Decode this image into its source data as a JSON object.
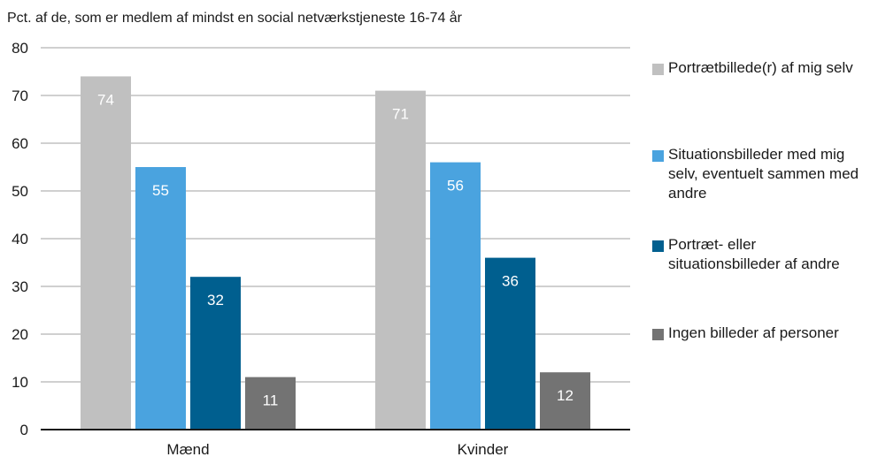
{
  "chart_data": {
    "type": "bar",
    "ylabel": "Pct. af de, som er medlem af mindst en social netværkstjeneste  16-74 år",
    "categories": [
      "Mænd",
      "Kvinder"
    ],
    "ylim": [
      0,
      80
    ],
    "yticks": [
      0,
      10,
      20,
      30,
      40,
      50,
      60,
      70,
      80
    ],
    "grid": true,
    "legend_position": "right",
    "series": [
      {
        "name": "Portrætbillede(r) af mig selv",
        "values": [
          74,
          71
        ],
        "color": "#c0c0c0"
      },
      {
        "name": "Situationsbilleder med mig selv, eventuelt sammen med andre",
        "values": [
          55,
          56
        ],
        "color": "#4aa3df"
      },
      {
        "name": "Portræt- eller situationsbilleder af andre",
        "values": [
          32,
          36
        ],
        "color": "#005f8f"
      },
      {
        "name": "Ingen billeder af personer",
        "values": [
          11,
          12
        ],
        "color": "#737373"
      }
    ]
  }
}
